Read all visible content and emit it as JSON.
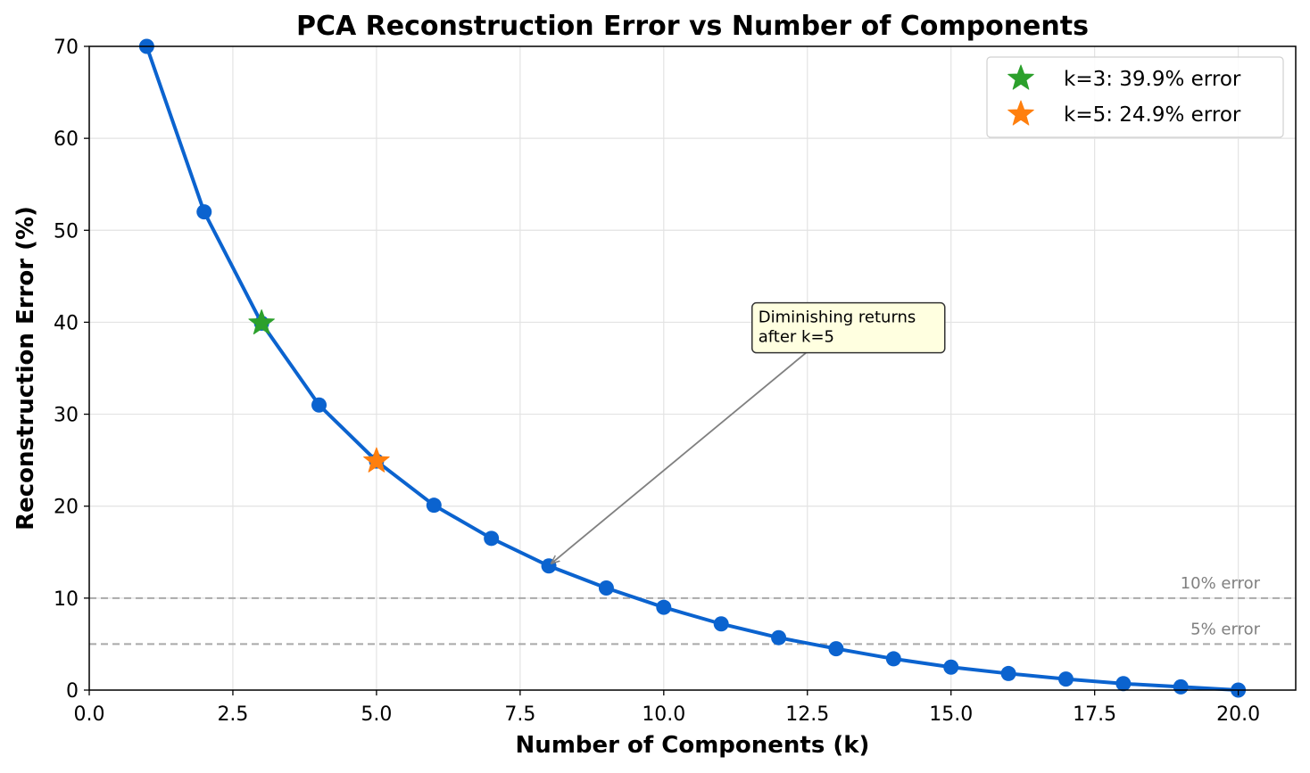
{
  "chart_data": {
    "type": "line",
    "title": "PCA Reconstruction Error vs Number of Components",
    "xlabel": "Number of Components (k)",
    "ylabel": "Reconstruction Error (%)",
    "xlim": [
      0,
      21
    ],
    "ylim": [
      0,
      70
    ],
    "xticks": [
      0,
      2.5,
      5,
      7.5,
      10,
      12.5,
      15,
      17.5,
      20
    ],
    "xtick_labels": [
      "0.0",
      "2.5",
      "5.0",
      "7.5",
      "10.0",
      "12.5",
      "15.0",
      "17.5",
      "20.0"
    ],
    "yticks": [
      0,
      10,
      20,
      30,
      40,
      50,
      60,
      70
    ],
    "ytick_labels": [
      "0",
      "10",
      "20",
      "30",
      "40",
      "50",
      "60",
      "70"
    ],
    "grid": true,
    "series": [
      {
        "name": "Reconstruction error",
        "color": "#0b63cf",
        "x": [
          1,
          2,
          3,
          4,
          5,
          6,
          7,
          8,
          9,
          10,
          11,
          12,
          13,
          14,
          15,
          16,
          17,
          18,
          19,
          20
        ],
        "y": [
          70.0,
          52.0,
          39.9,
          31.0,
          24.9,
          20.1,
          16.5,
          13.5,
          11.1,
          9.0,
          7.2,
          5.7,
          4.5,
          3.4,
          2.5,
          1.8,
          1.2,
          0.7,
          0.35,
          0.0
        ]
      }
    ],
    "highlights": [
      {
        "x": 3,
        "y": 39.9,
        "color": "#2ca02c",
        "label": "k=3: 39.9% error"
      },
      {
        "x": 5,
        "y": 24.9,
        "color": "#ff7f0e",
        "label": "k=5: 24.9% error"
      }
    ],
    "reference_lines": [
      {
        "y": 10,
        "label": "10% error",
        "color": "#a9a9a9"
      },
      {
        "y": 5,
        "label": "5% error",
        "color": "#a9a9a9"
      }
    ],
    "annotation": {
      "lines": [
        "Diminishing returns",
        "after k=5"
      ],
      "point_x": 8,
      "point_y": 13.5,
      "text_x": 12.5,
      "text_y": 36.0
    },
    "legend_position": "top-right"
  }
}
